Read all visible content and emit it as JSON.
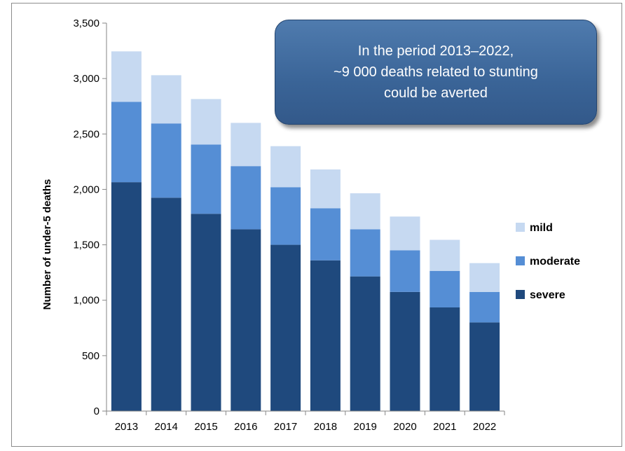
{
  "chart_data": {
    "type": "bar",
    "stacked": true,
    "categories": [
      "2013",
      "2014",
      "2015",
      "2016",
      "2017",
      "2018",
      "2019",
      "2020",
      "2021",
      "2022"
    ],
    "series": [
      {
        "name": "severe",
        "color": "#1f497d",
        "values": [
          2065,
          1925,
          1780,
          1640,
          1500,
          1360,
          1215,
          1075,
          935,
          800
        ]
      },
      {
        "name": "moderate",
        "color": "#558ed5",
        "values": [
          725,
          670,
          625,
          570,
          520,
          470,
          425,
          375,
          330,
          275
        ]
      },
      {
        "name": "mild",
        "color": "#c6d9f1",
        "values": [
          455,
          435,
          410,
          390,
          370,
          350,
          325,
          305,
          280,
          260
        ]
      }
    ],
    "ylabel": "Number of under-5 deaths",
    "xlabel": "",
    "ylim": [
      0,
      3500
    ],
    "yticks": [
      0,
      500,
      1000,
      1500,
      2000,
      2500,
      3000,
      3500
    ],
    "ytick_labels": [
      "0",
      "500",
      "1,000",
      "1,500",
      "2,000",
      "2,500",
      "3,000",
      "3,500"
    ],
    "grid": false,
    "legend": {
      "placement": "right",
      "order": [
        "mild",
        "moderate",
        "severe"
      ]
    },
    "annotation": {
      "lines": [
        "In the period 2013–2022,",
        "~9 000 deaths related to stunting",
        "could be averted"
      ]
    }
  }
}
